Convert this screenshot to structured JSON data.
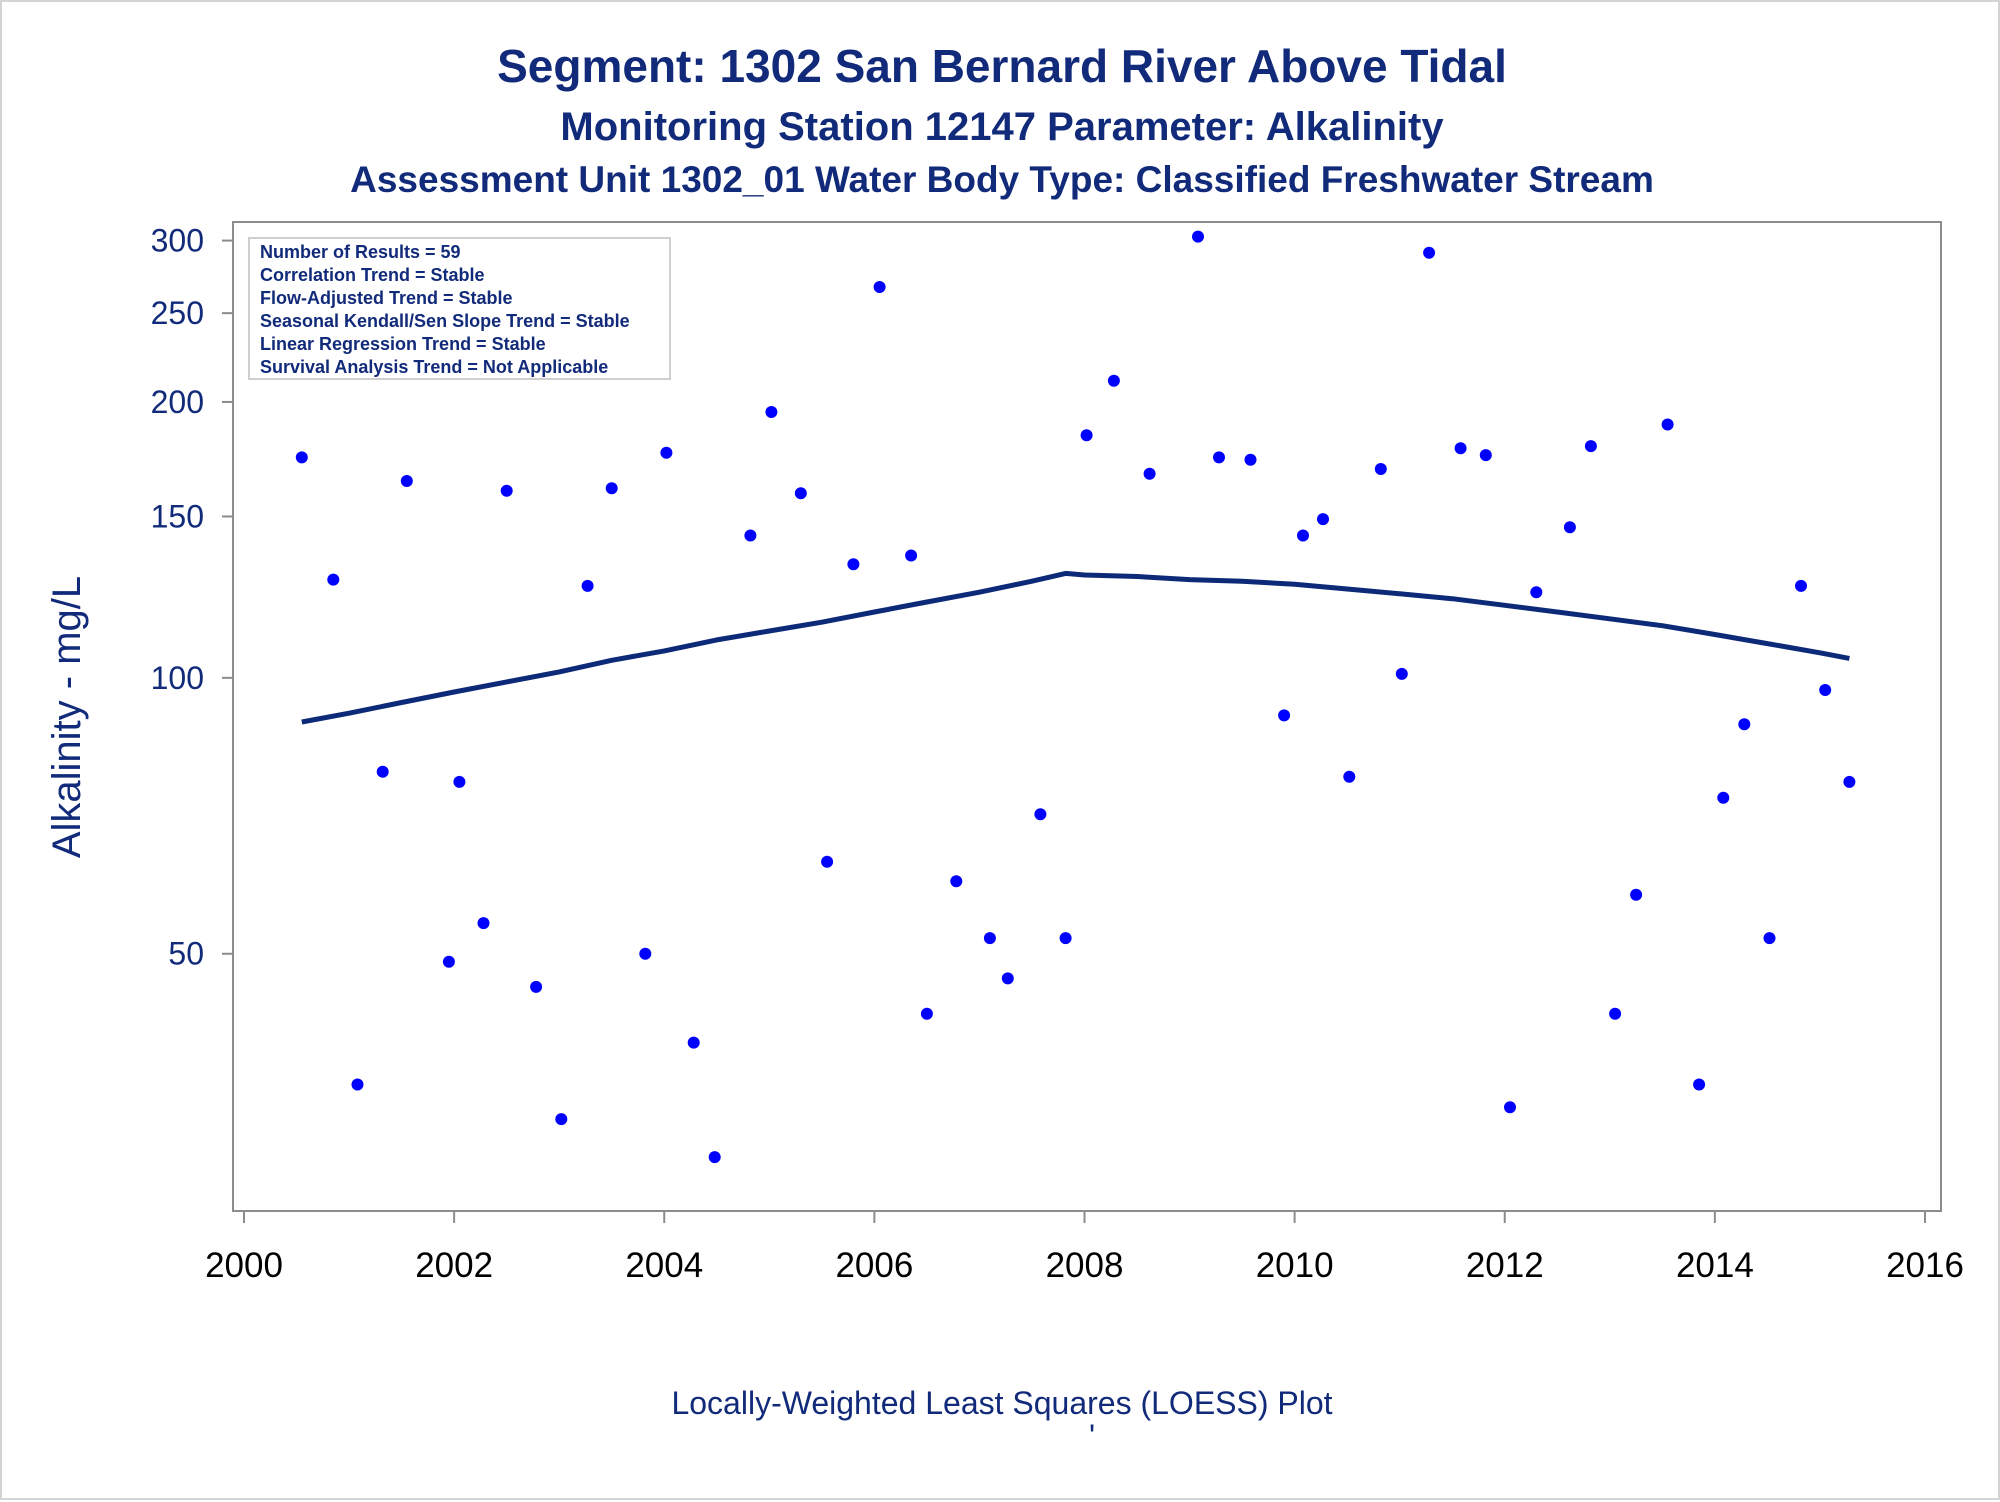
{
  "chart_data": {
    "type": "scatter",
    "title": "Segment: 1302  San Bernard River Above Tidal",
    "subtitle": "Monitoring Station 12147 Parameter: Alkalinity",
    "subtitle2": "Assessment Unit 1302_01   Water Body Type: Classified Freshwater Stream",
    "ylabel": "Alkalinity - mg/L",
    "xlabel": "",
    "footnote": "Locally-Weighted Least Squares (LOESS) Plot",
    "footnote_mark": "'",
    "y_scale": "log",
    "ylim": [
      27,
      305
    ],
    "xlim": [
      2000,
      2016
    ],
    "x_ticks": [
      "2000",
      "2002",
      "2004",
      "2006",
      "2008",
      "2010",
      "2012",
      "2014",
      "2016"
    ],
    "y_ticks": [
      "50",
      "100",
      "150",
      "200",
      "250",
      "300"
    ],
    "grid": false,
    "legend_position": "top-left",
    "stats": [
      "Number of Results = 59",
      "Correlation Trend = Stable",
      "Flow-Adjusted Trend = Stable",
      "Seasonal Kendall/Sen Slope Trend = Stable",
      "Linear Regression Trend = Stable",
      "Survival Analysis Trend = Not Applicable"
    ],
    "colors": {
      "points": "#0000ff",
      "line": "#0d2a78",
      "text": "#112a7a",
      "axis": "#8c8c8c"
    },
    "series": [
      {
        "type": "scatter",
        "x": [
          2000.55,
          2000.85,
          2001.08,
          2001.32,
          2001.55,
          2001.95,
          2002.05,
          2002.28,
          2002.5,
          2002.78,
          2003.02,
          2003.27,
          2003.5,
          2003.82,
          2004.02,
          2004.28,
          2004.48,
          2004.82,
          2005.02,
          2005.3,
          2005.55,
          2005.8,
          2006.05,
          2006.35,
          2006.5,
          2006.78,
          2007.1,
          2007.27,
          2007.58,
          2007.82,
          2008.02,
          2008.28,
          2008.62,
          2009.08,
          2009.28,
          2009.58,
          2009.9,
          2010.08,
          2010.27,
          2010.52,
          2010.82,
          2011.02,
          2011.28,
          2011.58,
          2011.82,
          2012.05,
          2012.3,
          2012.62,
          2012.82,
          2013.05,
          2013.25,
          2013.85,
          2013.55,
          2014.08,
          2014.28,
          2014.52,
          2014.82,
          2015.05,
          2015.28
        ],
        "y": [
          174,
          128,
          36,
          79,
          164,
          49,
          77,
          54,
          160,
          46,
          33,
          126,
          161,
          50,
          176,
          40,
          30,
          143,
          195,
          159,
          63,
          133,
          267,
          136,
          43,
          60,
          52,
          47,
          71,
          52,
          184,
          211,
          167,
          303,
          174,
          173,
          91,
          143,
          149,
          78,
          169,
          101,
          291,
          178,
          175,
          34,
          124,
          146,
          179,
          43,
          58,
          36,
          189,
          74,
          89,
          52,
          126,
          97,
          77
        ]
      },
      {
        "type": "line",
        "name": "LOESS",
        "x": [
          2000.55,
          2001.0,
          2001.5,
          2002.0,
          2002.5,
          2003.0,
          2003.5,
          2004.0,
          2004.5,
          2005.0,
          2005.5,
          2006.0,
          2006.5,
          2007.0,
          2007.5,
          2007.82,
          2008.0,
          2008.5,
          2009.0,
          2009.5,
          2010.0,
          2010.5,
          2011.0,
          2011.5,
          2012.0,
          2012.5,
          2013.0,
          2013.5,
          2014.0,
          2014.5,
          2015.0,
          2015.28
        ],
        "y": [
          89.5,
          91.5,
          94.0,
          96.5,
          99.0,
          101.5,
          104.5,
          107.0,
          110.0,
          112.5,
          115.0,
          118.0,
          121.0,
          124.0,
          127.5,
          130.0,
          129.5,
          129.0,
          128.0,
          127.5,
          126.5,
          125.0,
          123.5,
          122.0,
          120.0,
          118.0,
          116.0,
          114.0,
          111.5,
          109.0,
          106.5,
          105.0
        ]
      }
    ]
  }
}
